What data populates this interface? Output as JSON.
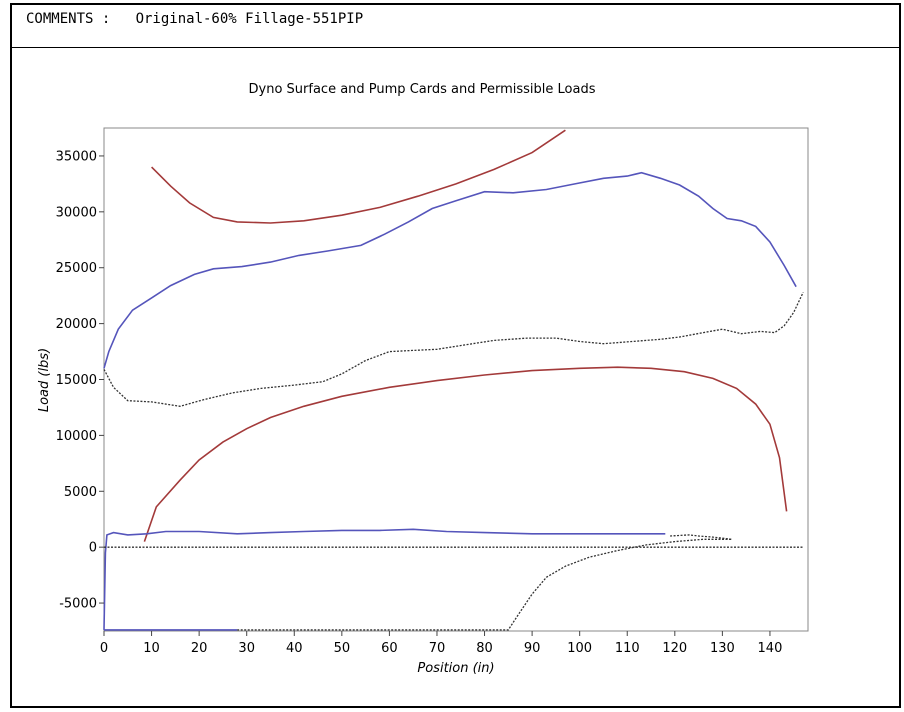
{
  "header": {
    "comments": "COMMENTS :   Original-60% Fillage-551PIP"
  },
  "chart_data": {
    "type": "line",
    "title": "Dyno Surface and Pump Cards and Permissible Loads",
    "xlabel": "Position (in)",
    "ylabel": "Load (lbs)",
    "xlim": [
      0,
      148
    ],
    "ylim": [
      -7500,
      37500
    ],
    "xticks": [
      0,
      10,
      20,
      30,
      40,
      50,
      60,
      70,
      80,
      90,
      100,
      110,
      120,
      130,
      140
    ],
    "yticks": [
      -5000,
      0,
      5000,
      10000,
      15000,
      20000,
      25000,
      30000,
      35000
    ],
    "grid": false,
    "series": [
      {
        "id": "max-permissible-load",
        "color": "#a33a3a",
        "style": "solid",
        "points": [
          [
            10,
            34000
          ],
          [
            14,
            32300
          ],
          [
            18,
            30800
          ],
          [
            23,
            29500
          ],
          [
            28,
            29100
          ],
          [
            35,
            29000
          ],
          [
            42,
            29200
          ],
          [
            50,
            29700
          ],
          [
            58,
            30400
          ],
          [
            66,
            31400
          ],
          [
            74,
            32500
          ],
          [
            82,
            33800
          ],
          [
            90,
            35300
          ],
          [
            97,
            37300
          ]
        ]
      },
      {
        "id": "min-permissible-load",
        "color": "#a33a3a",
        "style": "solid",
        "points": [
          [
            8.5,
            500
          ],
          [
            11,
            3600
          ],
          [
            16,
            6000
          ],
          [
            20,
            7800
          ],
          [
            25,
            9400
          ],
          [
            30,
            10600
          ],
          [
            35,
            11600
          ],
          [
            42,
            12600
          ],
          [
            50,
            13500
          ],
          [
            60,
            14300
          ],
          [
            70,
            14900
          ],
          [
            80,
            15400
          ],
          [
            90,
            15800
          ],
          [
            100,
            16000
          ],
          [
            108,
            16100
          ],
          [
            115,
            16000
          ],
          [
            122,
            15700
          ],
          [
            128,
            15100
          ],
          [
            133,
            14200
          ],
          [
            137,
            12800
          ],
          [
            140,
            11000
          ],
          [
            142,
            8000
          ],
          [
            143.5,
            3200
          ]
        ]
      },
      {
        "id": "surface-card-upstroke",
        "color": "#5555bb",
        "style": "solid",
        "points": [
          [
            0,
            16000
          ],
          [
            1,
            17500
          ],
          [
            3,
            19500
          ],
          [
            6,
            21200
          ],
          [
            10,
            22300
          ],
          [
            14,
            23400
          ],
          [
            19,
            24400
          ],
          [
            23,
            24900
          ],
          [
            29,
            25100
          ],
          [
            35,
            25500
          ],
          [
            41,
            26100
          ],
          [
            47,
            26500
          ],
          [
            54,
            27000
          ],
          [
            59,
            28000
          ],
          [
            64,
            29100
          ],
          [
            69,
            30300
          ],
          [
            74,
            31000
          ],
          [
            80,
            31800
          ],
          [
            86,
            31700
          ],
          [
            93,
            32000
          ],
          [
            99,
            32500
          ],
          [
            105,
            33000
          ],
          [
            110,
            33200
          ],
          [
            113,
            33500
          ],
          [
            117,
            33000
          ],
          [
            121,
            32400
          ],
          [
            125,
            31400
          ],
          [
            128,
            30300
          ],
          [
            131,
            29400
          ],
          [
            134,
            29200
          ],
          [
            137,
            28700
          ],
          [
            140,
            27300
          ],
          [
            143,
            25200
          ],
          [
            145.5,
            23300
          ]
        ]
      },
      {
        "id": "surface-card-downstroke",
        "color": "#333333",
        "style": "dotted",
        "points": [
          [
            0,
            15900
          ],
          [
            2,
            14300
          ],
          [
            5,
            13100
          ],
          [
            10,
            13000
          ],
          [
            16,
            12600
          ],
          [
            21,
            13200
          ],
          [
            27,
            13800
          ],
          [
            33,
            14200
          ],
          [
            40,
            14500
          ],
          [
            46,
            14800
          ],
          [
            50,
            15500
          ],
          [
            55,
            16700
          ],
          [
            60,
            17500
          ],
          [
            65,
            17600
          ],
          [
            70,
            17700
          ],
          [
            76,
            18100
          ],
          [
            82,
            18500
          ],
          [
            89,
            18700
          ],
          [
            95,
            18700
          ],
          [
            100,
            18400
          ],
          [
            105,
            18200
          ],
          [
            111,
            18400
          ],
          [
            117,
            18600
          ],
          [
            121,
            18800
          ],
          [
            126,
            19200
          ],
          [
            130,
            19500
          ],
          [
            134,
            19100
          ],
          [
            138,
            19300
          ],
          [
            141,
            19200
          ],
          [
            143,
            19800
          ],
          [
            145,
            21000
          ],
          [
            147,
            22800
          ]
        ]
      },
      {
        "id": "pump-card-upstroke",
        "color": "#5555bb",
        "style": "solid",
        "points": [
          [
            0,
            -7400
          ],
          [
            0.3,
            -500
          ],
          [
            0.6,
            1100
          ],
          [
            2,
            1300
          ],
          [
            5,
            1100
          ],
          [
            9,
            1200
          ],
          [
            13,
            1400
          ],
          [
            20,
            1400
          ],
          [
            28,
            1200
          ],
          [
            35,
            1300
          ],
          [
            42,
            1400
          ],
          [
            50,
            1500
          ],
          [
            58,
            1500
          ],
          [
            65,
            1600
          ],
          [
            72,
            1400
          ],
          [
            80,
            1300
          ],
          [
            90,
            1200
          ],
          [
            100,
            1200
          ],
          [
            110,
            1200
          ],
          [
            118,
            1200
          ]
        ]
      },
      {
        "id": "pump-card-floor",
        "color": "#5555bb",
        "style": "solid",
        "points": [
          [
            0,
            -7400
          ],
          [
            28,
            -7400
          ]
        ]
      },
      {
        "id": "pump-card-downstroke",
        "color": "#333333",
        "style": "dotted",
        "points": [
          [
            28,
            -7400
          ],
          [
            85,
            -7400
          ],
          [
            87,
            -6100
          ],
          [
            90,
            -4200
          ],
          [
            93,
            -2700
          ],
          [
            97,
            -1700
          ],
          [
            102,
            -900
          ],
          [
            108,
            -300
          ],
          [
            114,
            200
          ],
          [
            120,
            500
          ],
          [
            126,
            700
          ],
          [
            132,
            700
          ],
          [
            128,
            900
          ],
          [
            125,
            1000
          ],
          [
            123,
            1100
          ],
          [
            119,
            1000
          ]
        ]
      },
      {
        "id": "zero-reference",
        "color": "#333333",
        "style": "dotted",
        "points": [
          [
            0,
            0
          ],
          [
            147,
            0
          ]
        ]
      }
    ]
  }
}
